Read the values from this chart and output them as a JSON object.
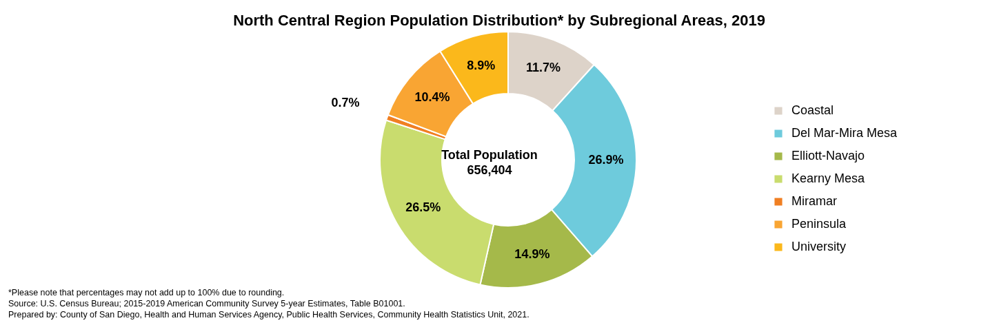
{
  "chart_data": {
    "type": "donut",
    "title": "North Central Region Population Distribution* by Subregional Areas, 2019",
    "categories": [
      "Coastal",
      "Del Mar-Mira Mesa",
      "Elliott-Navajo",
      "Kearny Mesa",
      "Miramar",
      "Peninsula",
      "University"
    ],
    "values": [
      11.7,
      26.9,
      14.9,
      26.5,
      0.7,
      10.4,
      8.9
    ],
    "value_labels": [
      "11.7%",
      "26.9%",
      "14.9%",
      "26.5%",
      "0.7%",
      "10.4%",
      "8.9%"
    ],
    "colors": [
      "#ddd3c9",
      "#6ecbdc",
      "#a5b94a",
      "#c9dc6e",
      "#f07f22",
      "#f9a533",
      "#fbb81b"
    ],
    "legend": "right",
    "annotations": [
      "Total Population",
      "656,404",
      "*Please note that percentages may not add up to 100% due to rounding.",
      "Source: U.S. Census Bureau; 2015-2019 American Community Survey 5-year Estimates, Table B01001.",
      "Prepared by: County of San Diego, Health and Human Services Agency, Public Health Services, Community Health Statistics Unit, 2021."
    ]
  }
}
